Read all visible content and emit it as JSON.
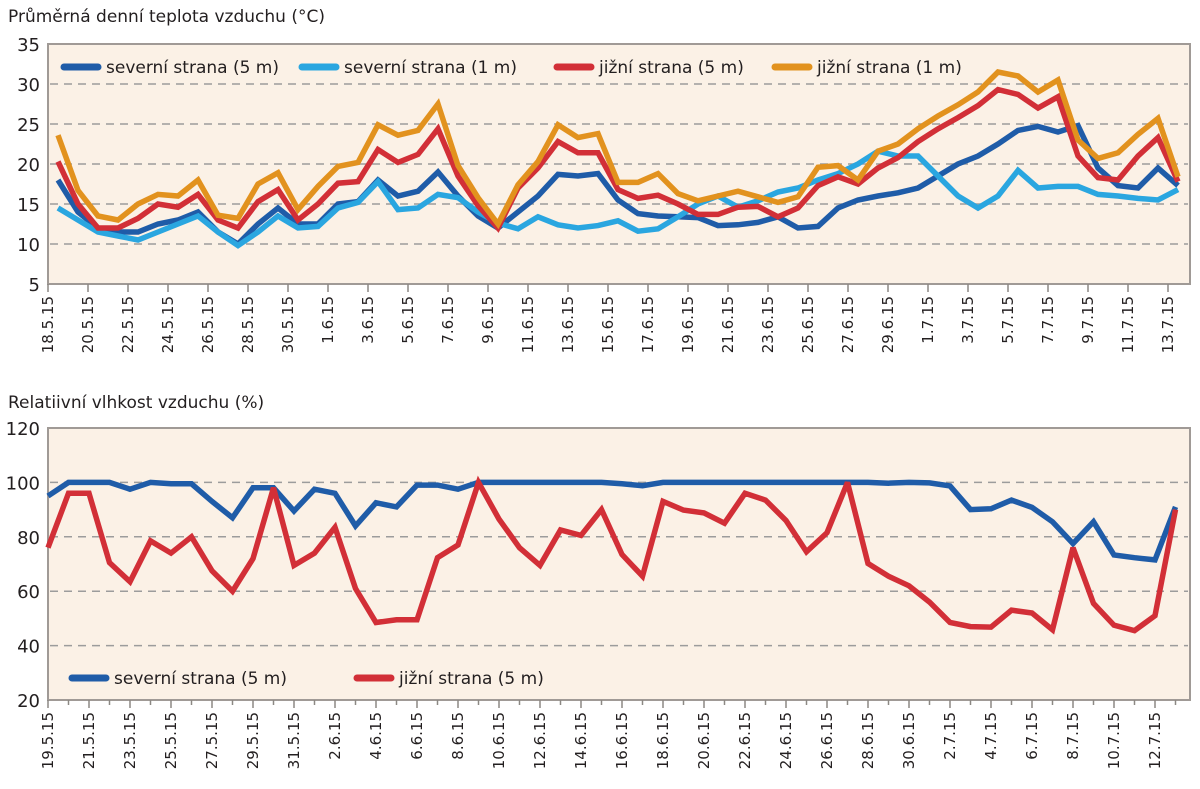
{
  "chart_data": [
    {
      "type": "line",
      "title": "Průměrná denní teplota vzduchu (°C)",
      "xlabel": "",
      "ylabel": "",
      "ylim": [
        5,
        35
      ],
      "yticks": [
        "5",
        "10",
        "15",
        "20",
        "25",
        "30",
        "35"
      ],
      "grid": true,
      "legend_position": "top",
      "x_tick_labels": [
        "18.5.15",
        "20.5.15",
        "22.5.15",
        "24.5.15",
        "26.5.15",
        "28.5.15",
        "30.5.15",
        "1.6.15",
        "3.6.15",
        "5.6.15",
        "7.6.15",
        "9.6.15",
        "11.6.15",
        "13.6.15",
        "15.6.15",
        "17.6.15",
        "19.6.15",
        "21.6.15",
        "23.6.15",
        "25.6.15",
        "27.6.15",
        "29.6.15",
        "1.7.15",
        "3.7.15",
        "5.7.15",
        "7.7.15",
        "9.7.15",
        "11.7.15",
        "13.7.15"
      ],
      "point_count": 57,
      "series": [
        {
          "name": "severní strana (5 m)",
          "color": "#1f5ca8",
          "values": [
            18,
            14,
            12,
            11.5,
            11.5,
            12.5,
            13,
            14,
            11.5,
            10,
            12.5,
            14.5,
            12.5,
            12.5,
            15,
            15.3,
            18,
            16,
            16.6,
            19,
            16,
            13.5,
            12,
            14,
            16,
            18.7,
            18.5,
            18.8,
            15.5,
            13.8,
            13.5,
            13.4,
            13.3,
            12.3,
            12.4,
            12.7,
            13.4,
            12,
            12.2,
            14.5,
            15.5,
            16,
            16.4,
            17,
            18.5,
            20,
            21,
            22.5,
            24.2,
            24.7,
            24,
            24.8,
            19.5,
            17.3,
            17,
            19.5,
            17.3
          ]
        },
        {
          "name": "severní strana (1 m)",
          "color": "#2aa6e0",
          "values": [
            14.5,
            13,
            11.5,
            11,
            10.5,
            11.5,
            12.5,
            13.5,
            11.5,
            9.8,
            11.5,
            13.5,
            12,
            12.2,
            14.5,
            15.2,
            17.8,
            14.3,
            14.5,
            16.2,
            15.8,
            14,
            12.6,
            11.9,
            13.4,
            12.4,
            12,
            12.3,
            12.9,
            11.6,
            11.9,
            13.4,
            15,
            16,
            14.6,
            15.4,
            16.5,
            17,
            18,
            18.8,
            20,
            21.6,
            21,
            21,
            18.5,
            16,
            14.5,
            16,
            19.2,
            17,
            17.2,
            17.2,
            16.2,
            16,
            15.7,
            15.5,
            16.8
          ]
        },
        {
          "name": "jižní strana (5 m)",
          "color": "#d22f37",
          "values": [
            20.3,
            15,
            12,
            12,
            13.2,
            15,
            14.6,
            16.2,
            13,
            12,
            15.3,
            16.8,
            13,
            15,
            17.6,
            17.8,
            21.8,
            20.2,
            21.2,
            24.4,
            18.5,
            14.8,
            12,
            17,
            19.5,
            22.8,
            21.4,
            21.4,
            16.8,
            15.7,
            16.1,
            15,
            13.7,
            13.7,
            14.6,
            14.7,
            13.4,
            14.5,
            17.3,
            18.4,
            17.5,
            19.5,
            20.8,
            22.8,
            24.4,
            25.8,
            27.3,
            29.3,
            28.7,
            27,
            28.4,
            21,
            18.3,
            18,
            21,
            23.3,
            17.8
          ]
        },
        {
          "name": "jižní strana (1 m)",
          "color": "#e2921e",
          "values": [
            23.6,
            16.7,
            13.5,
            13,
            15,
            16.2,
            16,
            18,
            13.6,
            13.2,
            17.5,
            18.9,
            14.3,
            17.2,
            19.7,
            20.2,
            24.9,
            23.6,
            24.2,
            27.5,
            19.8,
            15.8,
            12.5,
            17.4,
            20.3,
            24.9,
            23.3,
            23.8,
            17.7,
            17.7,
            18.8,
            16.3,
            15.4,
            16,
            16.6,
            15.9,
            15.2,
            15.9,
            19.6,
            19.8,
            18,
            21.6,
            22.5,
            24.4,
            26,
            27.4,
            29,
            31.5,
            31,
            29,
            30.5,
            23,
            20.7,
            21.4,
            23.7,
            25.7,
            18.4
          ]
        }
      ]
    },
    {
      "type": "line",
      "title": "Relatiivní vlhkost vzduchu (%)",
      "xlabel": "",
      "ylabel": "",
      "ylim": [
        20,
        120
      ],
      "yticks": [
        "20",
        "40",
        "60",
        "80",
        "100",
        "120"
      ],
      "grid": true,
      "legend_position": "bottom-left",
      "x_tick_labels": [
        "19.5.15",
        "21.5.15",
        "23.5.15",
        "25.5.15",
        "27.5.15",
        "29.5.15",
        "31.5.15",
        "2.6.15",
        "4.6.15",
        "6.6.15",
        "8.6.15",
        "10.6.15",
        "12.6.15",
        "14.6.15",
        "16.6.15",
        "18.6.15",
        "20.6.15",
        "22.6.15",
        "24.6.15",
        "26.6.15",
        "28.6.15",
        "30.6.15",
        "2.7.15",
        "4.7.15",
        "6.7.15",
        "8.7.15",
        "10.7.15",
        "12.7.15"
      ],
      "point_count": 56,
      "series": [
        {
          "name": "severní strana (5 m)",
          "color": "#1f5ca8",
          "values": [
            95,
            100,
            100,
            100,
            97.5,
            100,
            99.5,
            99.5,
            93,
            87,
            98,
            98,
            89.5,
            97.5,
            96,
            84,
            92.5,
            91,
            99,
            99,
            97.5,
            100,
            100,
            100,
            100,
            100,
            100,
            100,
            99.5,
            98.8,
            100,
            100,
            100,
            100,
            100,
            100,
            100,
            100,
            100,
            100,
            100,
            99.7,
            100,
            99.8,
            98.7,
            90,
            90.3,
            93.5,
            90.8,
            85.5,
            77.5,
            85.5,
            73.3,
            72.3,
            71.5,
            91
          ]
        },
        {
          "name": "jižní strana (5 m)",
          "color": "#d22f37",
          "values": [
            76,
            96,
            96,
            70.5,
            63.5,
            78.5,
            74,
            80,
            67.5,
            60,
            72,
            98,
            69.5,
            74,
            83.5,
            61,
            48.5,
            49.5,
            49.5,
            72.3,
            77,
            100,
            86.5,
            76,
            69.5,
            82.5,
            80.5,
            90,
            73.5,
            65.5,
            93,
            89.8,
            88.8,
            85,
            96,
            93.5,
            86,
            74.5,
            81.5,
            100,
            70.2,
            65.5,
            62,
            56,
            48.5,
            47,
            46.8,
            53,
            52,
            45.8,
            76,
            55.5,
            47.5,
            45.5,
            51,
            90
          ]
        }
      ]
    }
  ]
}
